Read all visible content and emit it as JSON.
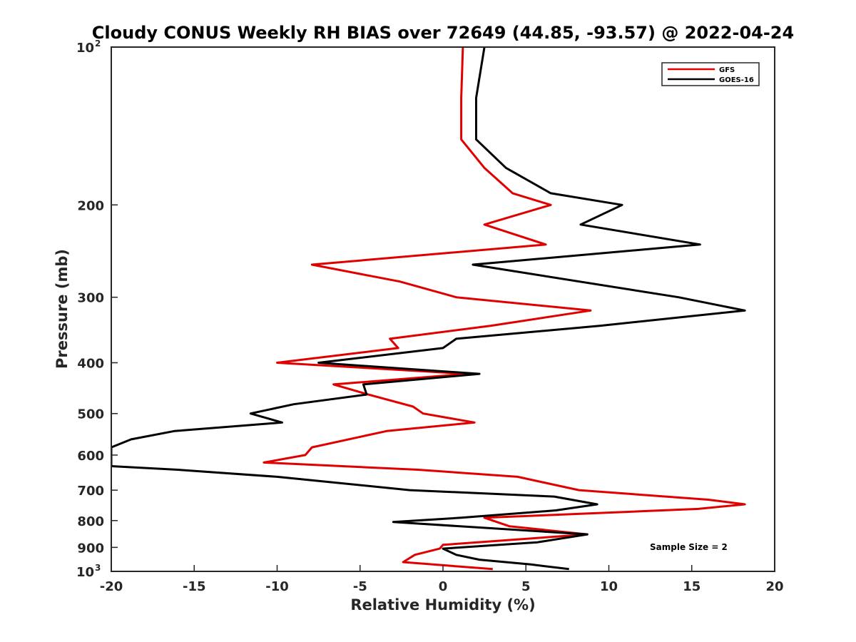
{
  "chart_data": {
    "type": "line",
    "title": "Cloudy CONUS Weekly RH BIAS over 72649 (44.85, -93.57) @ 2022-04-24",
    "xlabel": "Relative Humidity (%)",
    "ylabel": "Pressure (mb)",
    "xlim": [
      -20,
      20
    ],
    "ylim": [
      100,
      1000
    ],
    "y_scale": "log",
    "y_reversed": true,
    "x_ticks": [
      -20,
      -15,
      -10,
      -5,
      0,
      5,
      10,
      15,
      20
    ],
    "x_tick_labels": [
      "-20",
      "-15",
      "-10",
      "-5",
      "0",
      "5",
      "10",
      "15",
      "20"
    ],
    "y_ticks": [
      100,
      200,
      300,
      400,
      500,
      600,
      700,
      800,
      900,
      1000
    ],
    "y_tick_labels": [
      {
        "base": "10",
        "exp": "2"
      },
      {
        "base": "200",
        "exp": ""
      },
      {
        "base": "300",
        "exp": ""
      },
      {
        "base": "400",
        "exp": ""
      },
      {
        "base": "500",
        "exp": ""
      },
      {
        "base": "600",
        "exp": ""
      },
      {
        "base": "700",
        "exp": ""
      },
      {
        "base": "800",
        "exp": ""
      },
      {
        "base": "900",
        "exp": ""
      },
      {
        "base": "10",
        "exp": "3"
      }
    ],
    "legend_position": "top-right",
    "grid": false,
    "annotation": "Sample Size = 2",
    "series": [
      {
        "name": "GFS",
        "color": "#e00000",
        "points": [
          [
            1.2,
            100
          ],
          [
            1.1,
            125
          ],
          [
            1.1,
            150
          ],
          [
            2.5,
            170
          ],
          [
            4.2,
            190
          ],
          [
            6.5,
            200
          ],
          [
            2.5,
            218
          ],
          [
            6.2,
            238
          ],
          [
            -7.9,
            260
          ],
          [
            -2.6,
            280
          ],
          [
            0.8,
            300
          ],
          [
            8.9,
            318
          ],
          [
            2.9,
            340
          ],
          [
            -3.2,
            360
          ],
          [
            -2.7,
            375
          ],
          [
            -10.0,
            400
          ],
          [
            1.5,
            420
          ],
          [
            -6.6,
            440
          ],
          [
            -4.5,
            460
          ],
          [
            -1.8,
            485
          ],
          [
            -1.2,
            500
          ],
          [
            1.9,
            520
          ],
          [
            -3.4,
            540
          ],
          [
            -7.9,
            580
          ],
          [
            -8.3,
            600
          ],
          [
            -10.8,
            620
          ],
          [
            -1.5,
            640
          ],
          [
            4.5,
            660
          ],
          [
            8.2,
            700
          ],
          [
            16.0,
            730
          ],
          [
            18.2,
            745
          ],
          [
            15.4,
            760
          ],
          [
            2.5,
            790
          ],
          [
            4.0,
            820
          ],
          [
            8.7,
            850
          ],
          [
            0.0,
            890
          ],
          [
            -0.2,
            905
          ],
          [
            -1.7,
            930
          ],
          [
            -2.4,
            960
          ],
          [
            3.0,
            990
          ]
        ]
      },
      {
        "name": "GOES-16",
        "color": "#000000",
        "points": [
          [
            2.5,
            100
          ],
          [
            2.0,
            125
          ],
          [
            2.0,
            150
          ],
          [
            3.8,
            170
          ],
          [
            6.5,
            190
          ],
          [
            10.8,
            200
          ],
          [
            8.3,
            218
          ],
          [
            15.5,
            238
          ],
          [
            1.8,
            260
          ],
          [
            14.2,
            300
          ],
          [
            18.2,
            318
          ],
          [
            9.5,
            340
          ],
          [
            0.8,
            360
          ],
          [
            0.0,
            375
          ],
          [
            -7.5,
            400
          ],
          [
            2.2,
            420
          ],
          [
            -4.8,
            440
          ],
          [
            -4.6,
            460
          ],
          [
            -9.0,
            480
          ],
          [
            -11.6,
            500
          ],
          [
            -9.7,
            520
          ],
          [
            -16.2,
            540
          ],
          [
            -18.8,
            560
          ],
          [
            -20.0,
            580
          ],
          [
            -20.0,
            630
          ],
          [
            -16.0,
            640
          ],
          [
            -10.0,
            660
          ],
          [
            -2.0,
            700
          ],
          [
            6.7,
            720
          ],
          [
            9.3,
            745
          ],
          [
            6.8,
            765
          ],
          [
            1.1,
            790
          ],
          [
            -3.0,
            805
          ],
          [
            8.7,
            850
          ],
          [
            5.7,
            880
          ],
          [
            0.0,
            905
          ],
          [
            0.8,
            930
          ],
          [
            2.2,
            950
          ],
          [
            5.3,
            970
          ],
          [
            7.6,
            990
          ]
        ]
      }
    ]
  }
}
